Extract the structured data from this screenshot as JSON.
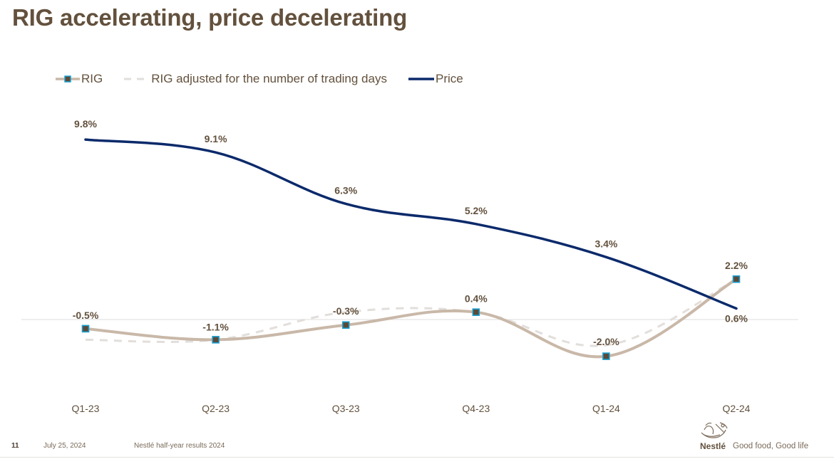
{
  "slide": {
    "title": "RIG accelerating, price decelerating",
    "footer": {
      "page_number": "11",
      "date": "July 25, 2024",
      "event": "Nestlé half-year results 2024"
    },
    "brand": {
      "logo_icon": "nestle-nest-logo-icon",
      "wordmark": "Nestlé",
      "tagline": "Good food, Good life"
    }
  },
  "colors": {
    "title": "#63513d",
    "rig": "#c9b8a8",
    "rig_marker_fill": "#5b4a3a",
    "rig_marker_border": "#1aa0d0",
    "rig_adjusted": "#e2dedb",
    "price": "#0b2a6b",
    "label": "#63513d",
    "zero_line": "#e4e4e4"
  },
  "chart_data": {
    "type": "line",
    "title": "RIG accelerating, price decelerating",
    "xlabel": "",
    "ylabel": "",
    "categories": [
      "Q1-23",
      "Q2-23",
      "Q3-23",
      "Q4-23",
      "Q1-24",
      "Q2-24"
    ],
    "ylim": [
      -3.5,
      10.5
    ],
    "grid": false,
    "zero_line": true,
    "legend_position": "top-left",
    "series": [
      {
        "name": "RIG",
        "style": "solid-with-markers",
        "values": [
          -0.5,
          -1.1,
          -0.3,
          0.4,
          -2.0,
          2.2
        ],
        "labels": [
          "-0.5%",
          "-1.1%",
          "-0.3%",
          "0.4%",
          "-2.0%",
          "2.2%"
        ]
      },
      {
        "name": "RIG adjusted for the number of trading days",
        "style": "dashed",
        "values": [
          -1.1,
          -1.1,
          0.4,
          0.4,
          -1.4,
          2.2
        ],
        "labels": []
      },
      {
        "name": "Price",
        "style": "solid",
        "values": [
          9.8,
          9.1,
          6.3,
          5.2,
          3.4,
          0.6
        ],
        "labels": [
          "9.8%",
          "9.1%",
          "6.3%",
          "5.2%",
          "3.4%",
          "0.6%"
        ]
      }
    ]
  }
}
